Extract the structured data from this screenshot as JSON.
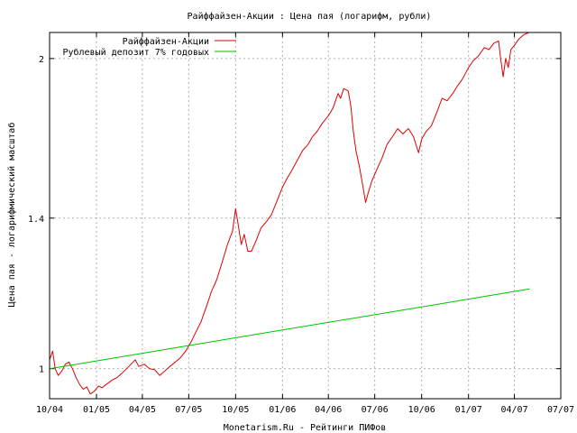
{
  "chart_data": {
    "type": "line",
    "title": "Райффайзен-Акции : Цена пая (логарифм, рубли)",
    "xlabel": "Monetarism.Ru - Рейтинги ПИФов",
    "ylabel": "Цена пая - логарифмический масштаб",
    "y_scale": "log",
    "ylim": [
      0.935,
      2.12
    ],
    "y_ticks": [
      {
        "value": 1,
        "label": "1"
      },
      {
        "value": 1.4,
        "label": "1.4"
      },
      {
        "value": 2,
        "label": "2"
      }
    ],
    "xlim": [
      "2004-10-01",
      "2007-07-01"
    ],
    "x_ticks": [
      {
        "value": "2004-10-01",
        "label": "10/04"
      },
      {
        "value": "2005-01-01",
        "label": "01/05"
      },
      {
        "value": "2005-04-01",
        "label": "04/05"
      },
      {
        "value": "2005-07-01",
        "label": "07/05"
      },
      {
        "value": "2005-10-01",
        "label": "10/05"
      },
      {
        "value": "2006-01-01",
        "label": "01/06"
      },
      {
        "value": "2006-04-01",
        "label": "04/06"
      },
      {
        "value": "2006-07-01",
        "label": "07/06"
      },
      {
        "value": "2006-10-01",
        "label": "10/06"
      },
      {
        "value": "2007-01-01",
        "label": "01/07"
      },
      {
        "value": "2007-04-01",
        "label": "04/07"
      },
      {
        "value": "2007-07-01",
        "label": "07/07"
      }
    ],
    "grid": true,
    "legend_position": "top-left",
    "series": [
      {
        "name": "Райффайзен-Акции",
        "color": "#e00000",
        "points": [
          [
            "2004-10-01",
            1.02
          ],
          [
            "2004-10-07",
            1.04
          ],
          [
            "2004-10-12",
            1.0
          ],
          [
            "2004-10-18",
            0.985
          ],
          [
            "2004-10-25",
            0.995
          ],
          [
            "2004-11-01",
            1.01
          ],
          [
            "2004-11-08",
            1.015
          ],
          [
            "2004-11-15",
            1.0
          ],
          [
            "2004-11-22",
            0.98
          ],
          [
            "2004-11-29",
            0.965
          ],
          [
            "2004-12-06",
            0.955
          ],
          [
            "2004-12-13",
            0.96
          ],
          [
            "2004-12-20",
            0.945
          ],
          [
            "2004-12-27",
            0.95
          ],
          [
            "2005-01-05",
            0.962
          ],
          [
            "2005-01-12",
            0.958
          ],
          [
            "2005-01-20",
            0.965
          ],
          [
            "2005-02-01",
            0.975
          ],
          [
            "2005-02-10",
            0.98
          ],
          [
            "2005-02-20",
            0.99
          ],
          [
            "2005-03-01",
            1.0
          ],
          [
            "2005-03-10",
            1.01
          ],
          [
            "2005-03-18",
            1.02
          ],
          [
            "2005-03-25",
            1.005
          ],
          [
            "2005-04-05",
            1.01
          ],
          [
            "2005-04-15",
            1.0
          ],
          [
            "2005-04-25",
            0.998
          ],
          [
            "2005-05-05",
            0.985
          ],
          [
            "2005-05-15",
            0.995
          ],
          [
            "2005-05-25",
            1.005
          ],
          [
            "2005-06-05",
            1.015
          ],
          [
            "2005-06-15",
            1.025
          ],
          [
            "2005-06-25",
            1.04
          ],
          [
            "2005-07-05",
            1.06
          ],
          [
            "2005-07-15",
            1.085
          ],
          [
            "2005-07-25",
            1.11
          ],
          [
            "2005-08-05",
            1.15
          ],
          [
            "2005-08-15",
            1.19
          ],
          [
            "2005-08-25",
            1.22
          ],
          [
            "2005-09-05",
            1.27
          ],
          [
            "2005-09-15",
            1.32
          ],
          [
            "2005-09-25",
            1.36
          ],
          [
            "2005-10-01",
            1.43
          ],
          [
            "2005-10-06",
            1.38
          ],
          [
            "2005-10-12",
            1.32
          ],
          [
            "2005-10-18",
            1.35
          ],
          [
            "2005-10-25",
            1.3
          ],
          [
            "2005-11-01",
            1.3
          ],
          [
            "2005-11-10",
            1.33
          ],
          [
            "2005-11-20",
            1.37
          ],
          [
            "2005-12-01",
            1.39
          ],
          [
            "2005-12-10",
            1.41
          ],
          [
            "2005-12-20",
            1.45
          ],
          [
            "2006-01-01",
            1.5
          ],
          [
            "2006-01-10",
            1.53
          ],
          [
            "2006-01-20",
            1.56
          ],
          [
            "2006-02-01",
            1.6
          ],
          [
            "2006-02-10",
            1.63
          ],
          [
            "2006-02-20",
            1.65
          ],
          [
            "2006-03-01",
            1.68
          ],
          [
            "2006-03-10",
            1.7
          ],
          [
            "2006-03-20",
            1.73
          ],
          [
            "2006-04-01",
            1.76
          ],
          [
            "2006-04-10",
            1.79
          ],
          [
            "2006-04-20",
            1.85
          ],
          [
            "2006-04-25",
            1.83
          ],
          [
            "2006-05-01",
            1.87
          ],
          [
            "2006-05-10",
            1.86
          ],
          [
            "2006-05-15",
            1.8
          ],
          [
            "2006-05-20",
            1.7
          ],
          [
            "2006-05-25",
            1.63
          ],
          [
            "2006-06-01",
            1.57
          ],
          [
            "2006-06-08",
            1.5
          ],
          [
            "2006-06-13",
            1.45
          ],
          [
            "2006-06-18",
            1.48
          ],
          [
            "2006-06-25",
            1.52
          ],
          [
            "2006-07-05",
            1.56
          ],
          [
            "2006-07-15",
            1.6
          ],
          [
            "2006-07-25",
            1.65
          ],
          [
            "2006-08-05",
            1.68
          ],
          [
            "2006-08-15",
            1.71
          ],
          [
            "2006-08-25",
            1.69
          ],
          [
            "2006-09-05",
            1.71
          ],
          [
            "2006-09-15",
            1.68
          ],
          [
            "2006-09-25",
            1.62
          ],
          [
            "2006-10-01",
            1.67
          ],
          [
            "2006-10-10",
            1.7
          ],
          [
            "2006-10-20",
            1.72
          ],
          [
            "2006-11-01",
            1.78
          ],
          [
            "2006-11-10",
            1.83
          ],
          [
            "2006-11-20",
            1.82
          ],
          [
            "2006-12-01",
            1.85
          ],
          [
            "2006-12-10",
            1.88
          ],
          [
            "2006-12-20",
            1.91
          ],
          [
            "2007-01-01",
            1.96
          ],
          [
            "2007-01-10",
            1.99
          ],
          [
            "2007-01-20",
            2.01
          ],
          [
            "2007-02-01",
            2.05
          ],
          [
            "2007-02-10",
            2.04
          ],
          [
            "2007-02-20",
            2.07
          ],
          [
            "2007-03-01",
            2.08
          ],
          [
            "2007-03-05",
            2.0
          ],
          [
            "2007-03-10",
            1.92
          ],
          [
            "2007-03-15",
            2.0
          ],
          [
            "2007-03-20",
            1.96
          ],
          [
            "2007-03-25",
            2.04
          ],
          [
            "2007-04-01",
            2.06
          ],
          [
            "2007-04-10",
            2.09
          ],
          [
            "2007-04-20",
            2.11
          ],
          [
            "2007-04-30",
            2.12
          ]
        ]
      },
      {
        "name": "Рублевый депозит 7% годовых",
        "color": "#00c000",
        "points": [
          [
            "2004-10-01",
            1.0
          ],
          [
            "2007-05-01",
            1.195
          ]
        ]
      }
    ]
  }
}
